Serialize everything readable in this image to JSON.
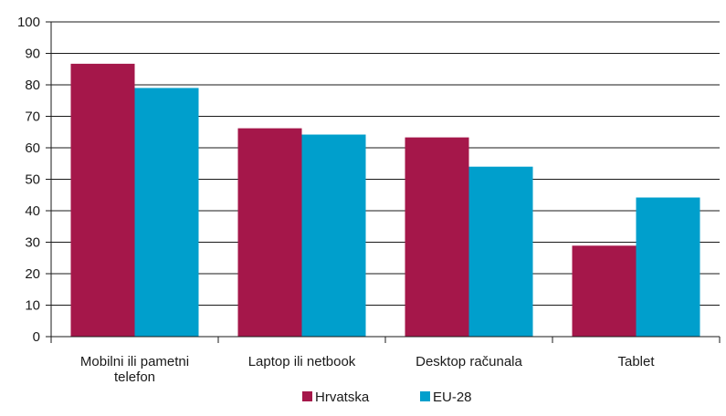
{
  "chart_data": {
    "type": "bar",
    "categories": [
      [
        "Mobilni ili pametni",
        "telefon"
      ],
      [
        "Laptop ili netbook"
      ],
      [
        "Desktop računala"
      ],
      [
        "Tablet"
      ]
    ],
    "series": [
      {
        "name": "Hrvatska",
        "color": "#a5174a",
        "values": [
          86.7,
          66.2,
          63.3,
          28.9
        ]
      },
      {
        "name": "EU-28",
        "color": "#009fcc",
        "values": [
          79.0,
          64.2,
          54.0,
          44.2
        ]
      }
    ],
    "ylim": [
      0,
      100
    ],
    "yticks": [
      0,
      10,
      20,
      30,
      40,
      50,
      60,
      70,
      80,
      90,
      100
    ],
    "grid": true,
    "legend": "bottom-center",
    "title": "",
    "xlabel": "",
    "ylabel": ""
  }
}
